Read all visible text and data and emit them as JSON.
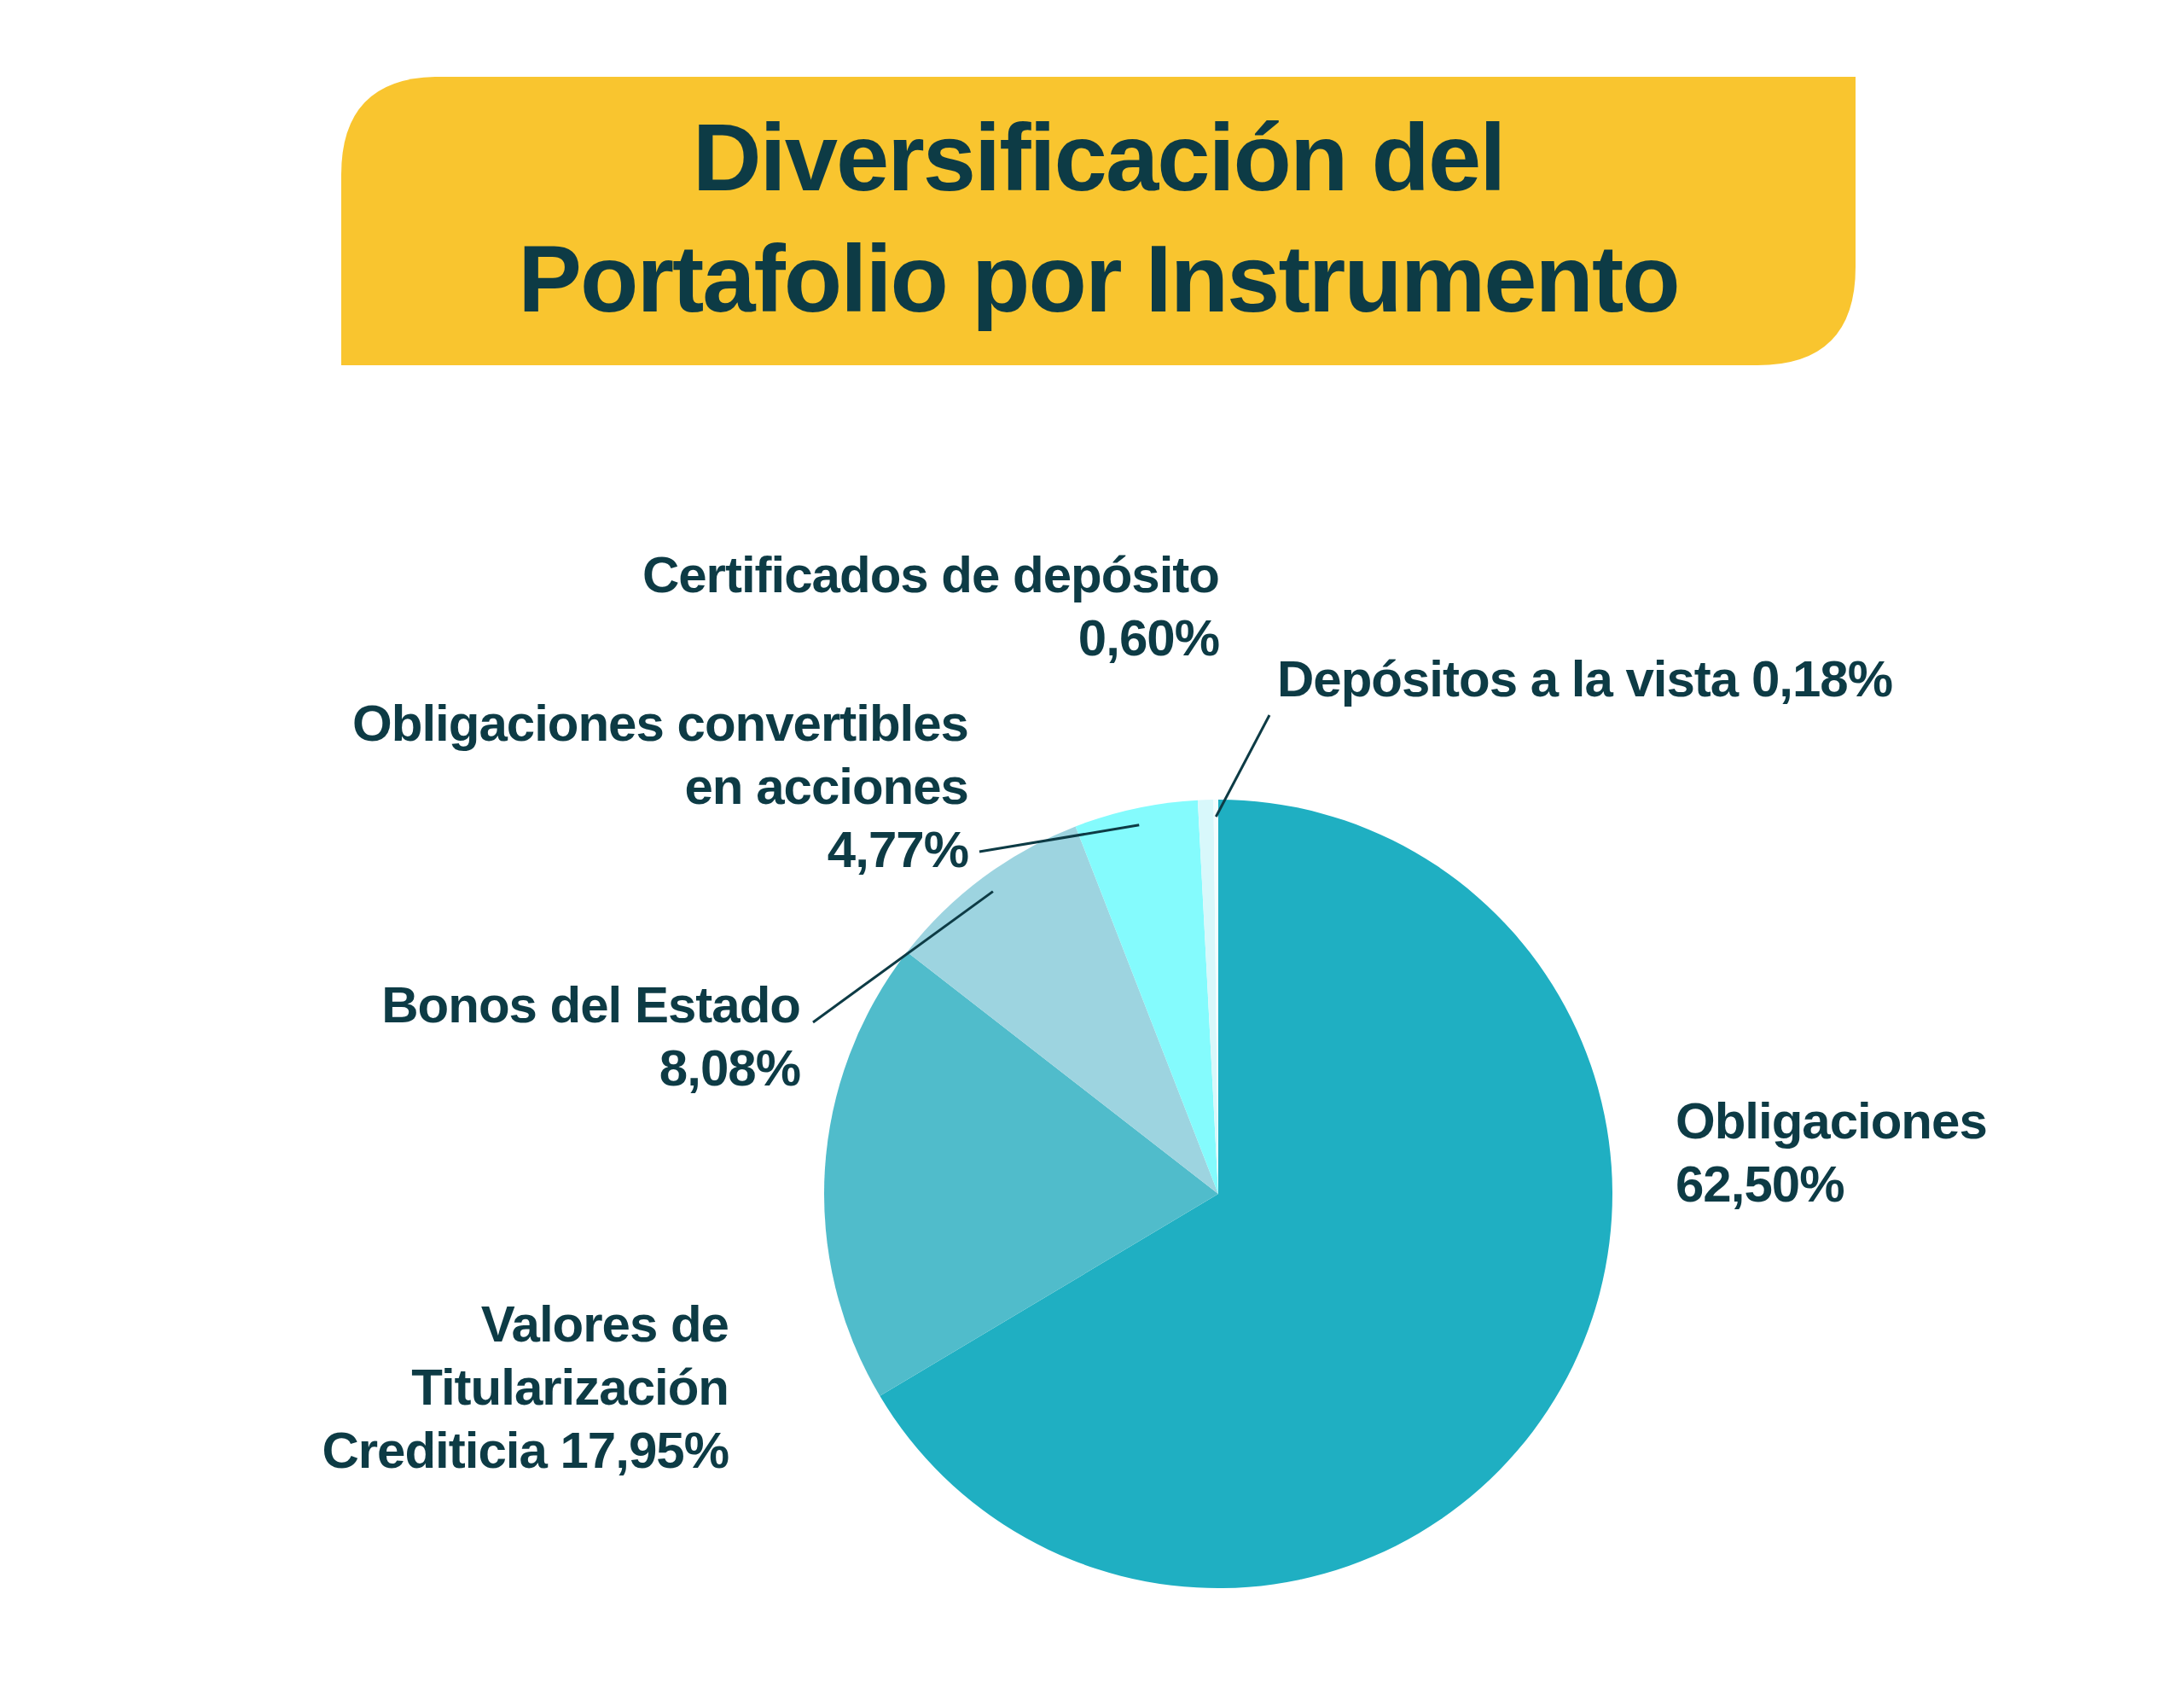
{
  "chart_data": {
    "type": "pie",
    "title": "Diversificación del Portafolio por Instrumento",
    "categories": [
      "Obligaciones",
      "Valores de Titularización Crediticia",
      "Bonos del Estado",
      "Obligaciones convertibles en acciones",
      "Certificados de depósito",
      "Depósitos a la vista"
    ],
    "values": [
      62.5,
      17.95,
      8.08,
      4.77,
      0.6,
      0.18
    ],
    "value_labels": [
      "62,50%",
      "17,95%",
      "8,08%",
      "4,77%",
      "0,60%",
      "0,18%"
    ],
    "colors": [
      "#1fafc2",
      "#50bccb",
      "#9dd4e0",
      "#84fbfd",
      "#d8f8fb",
      "#f2fdfe"
    ]
  }
}
